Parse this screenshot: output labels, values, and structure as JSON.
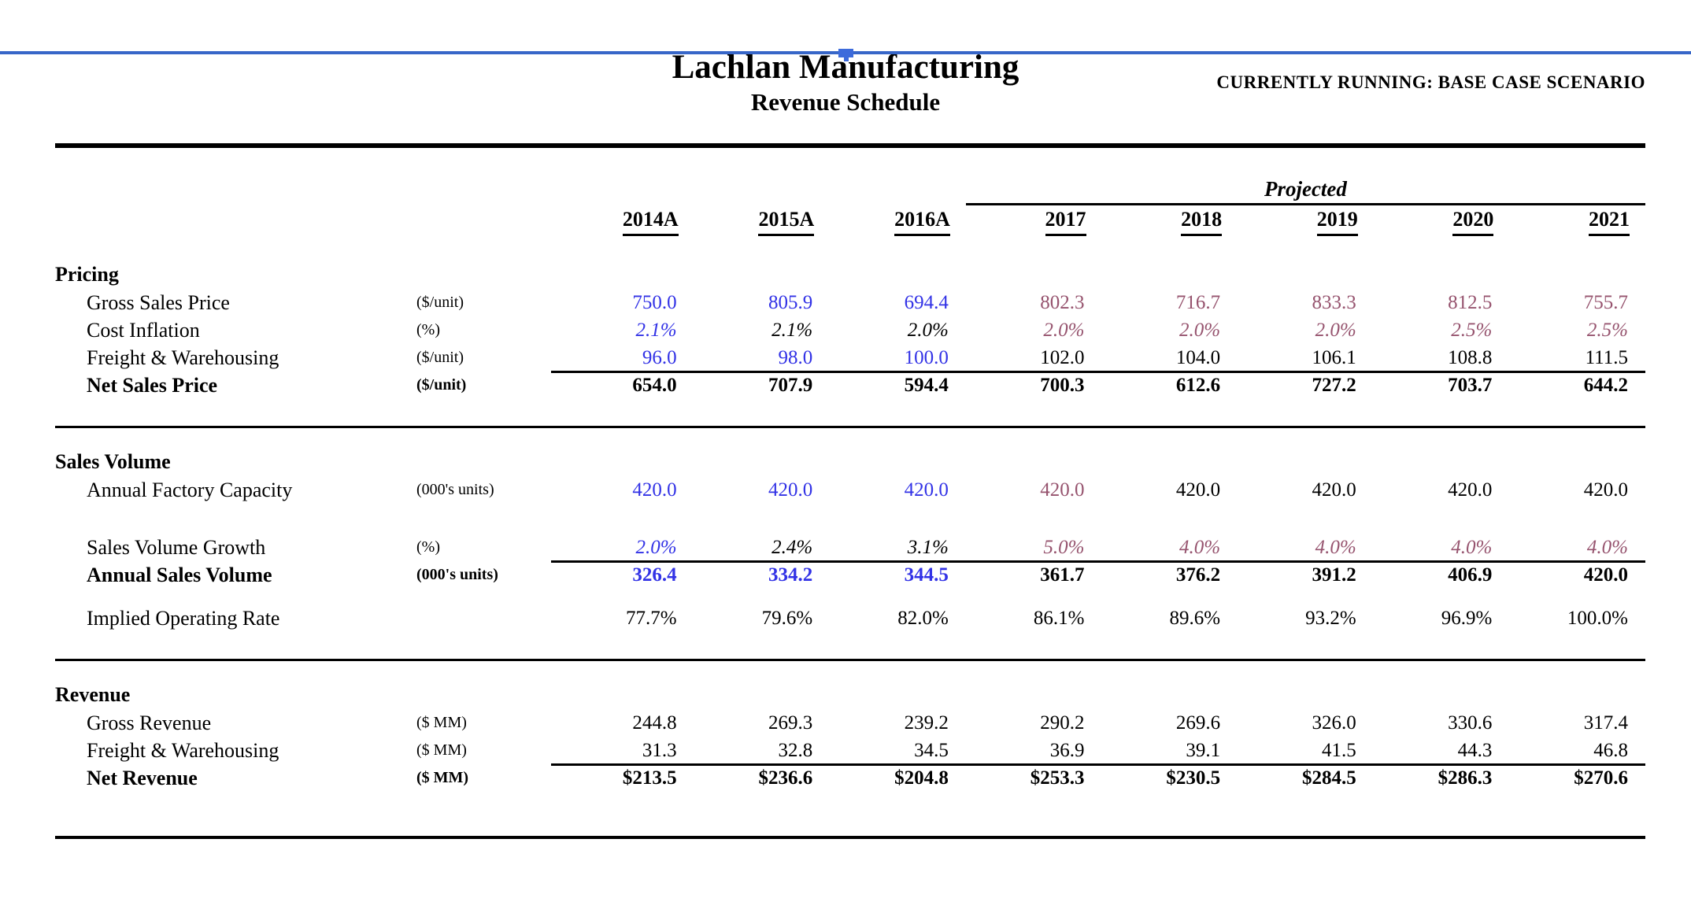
{
  "page": {
    "scenario_banner": "CURRENTLY RUNNING: BASE CASE SCENARIO",
    "title": "Lachlan Manufacturing",
    "subtitle": "Revenue Schedule"
  },
  "colors": {
    "input_blue": "#3232E6",
    "projected_purple": "#96536E",
    "text_black": "#000000",
    "top_bar_blue": "#3766C8",
    "handle_blue": "#3D6BDB"
  },
  "table": {
    "projected_label": "Projected",
    "years": [
      "2014A",
      "2015A",
      "2016A",
      "2017",
      "2018",
      "2019",
      "2020",
      "2021"
    ],
    "sections": [
      {
        "title": "Pricing",
        "rows": [
          {
            "label": "Gross Sales Price",
            "unit": "($/unit)",
            "values": [
              "750.0",
              "805.9",
              "694.4",
              "802.3",
              "716.7",
              "833.3",
              "812.5",
              "755.7"
            ],
            "colors": [
              "blue",
              "blue",
              "blue",
              "purple",
              "purple",
              "purple",
              "purple",
              "purple"
            ]
          },
          {
            "label": "Cost Inflation",
            "unit": "(%)",
            "italic": true,
            "values": [
              "2.1%",
              "2.1%",
              "2.0%",
              "2.0%",
              "2.0%",
              "2.0%",
              "2.5%",
              "2.5%"
            ],
            "colors": [
              "blue",
              "black",
              "black",
              "purple",
              "purple",
              "purple",
              "purple",
              "purple"
            ]
          },
          {
            "label": "Freight & Warehousing",
            "unit": "($/unit)",
            "values": [
              "96.0",
              "98.0",
              "100.0",
              "102.0",
              "104.0",
              "106.1",
              "108.8",
              "111.5"
            ],
            "colors": [
              "blue",
              "blue",
              "blue",
              "black",
              "black",
              "black",
              "black",
              "black"
            ]
          },
          {
            "label": "Net Sales Price",
            "unit": "($/unit)",
            "bold": true,
            "topline": true,
            "values": [
              "654.0",
              "707.9",
              "594.4",
              "700.3",
              "612.6",
              "727.2",
              "703.7",
              "644.2"
            ],
            "colors": [
              "black",
              "black",
              "black",
              "black",
              "black",
              "black",
              "black",
              "black"
            ]
          }
        ]
      },
      {
        "title": "Sales Volume",
        "rows": [
          {
            "label": "Annual Factory Capacity",
            "unit": "(000's units)",
            "values": [
              "420.0",
              "420.0",
              "420.0",
              "420.0",
              "420.0",
              "420.0",
              "420.0",
              "420.0"
            ],
            "colors": [
              "blue",
              "blue",
              "blue",
              "purple",
              "black",
              "black",
              "black",
              "black"
            ]
          },
          {
            "spacer": 38
          },
          {
            "label": "Sales Volume Growth",
            "unit": "(%)",
            "italic": true,
            "values": [
              "2.0%",
              "2.4%",
              "3.1%",
              "5.0%",
              "4.0%",
              "4.0%",
              "4.0%",
              "4.0%"
            ],
            "colors": [
              "blue",
              "black",
              "black",
              "purple",
              "purple",
              "purple",
              "purple",
              "purple"
            ]
          },
          {
            "label": "Annual Sales Volume",
            "unit": "(000's units)",
            "bold": true,
            "topline": true,
            "values": [
              "326.4",
              "334.2",
              "344.5",
              "361.7",
              "376.2",
              "391.2",
              "406.9",
              "420.0"
            ],
            "colors": [
              "blue",
              "blue",
              "blue",
              "black",
              "black",
              "black",
              "black",
              "black"
            ]
          },
          {
            "spacer": 20
          },
          {
            "label": "Implied Operating Rate",
            "unit": "",
            "values": [
              "77.7%",
              "79.6%",
              "82.0%",
              "86.1%",
              "89.6%",
              "93.2%",
              "96.9%",
              "100.0%"
            ],
            "colors": [
              "black",
              "black",
              "black",
              "black",
              "black",
              "black",
              "black",
              "black"
            ]
          }
        ]
      },
      {
        "title": "Revenue",
        "rows": [
          {
            "label": "Gross Revenue",
            "unit": "($ MM)",
            "values": [
              "244.8",
              "269.3",
              "239.2",
              "290.2",
              "269.6",
              "326.0",
              "330.6",
              "317.4"
            ],
            "colors": [
              "black",
              "black",
              "black",
              "black",
              "black",
              "black",
              "black",
              "black"
            ]
          },
          {
            "label": "Freight & Warehousing",
            "unit": "($ MM)",
            "values": [
              "31.3",
              "32.8",
              "34.5",
              "36.9",
              "39.1",
              "41.5",
              "44.3",
              "46.8"
            ],
            "colors": [
              "black",
              "black",
              "black",
              "black",
              "black",
              "black",
              "black",
              "black"
            ]
          },
          {
            "label": "Net Revenue",
            "unit": "($ MM)",
            "bold": true,
            "topline": true,
            "values": [
              "$213.5",
              "$236.6",
              "$204.8",
              "$253.3",
              "$230.5",
              "$284.5",
              "$286.3",
              "$270.6"
            ],
            "colors": [
              "black",
              "black",
              "black",
              "black",
              "black",
              "black",
              "black",
              "black"
            ]
          }
        ]
      }
    ]
  }
}
